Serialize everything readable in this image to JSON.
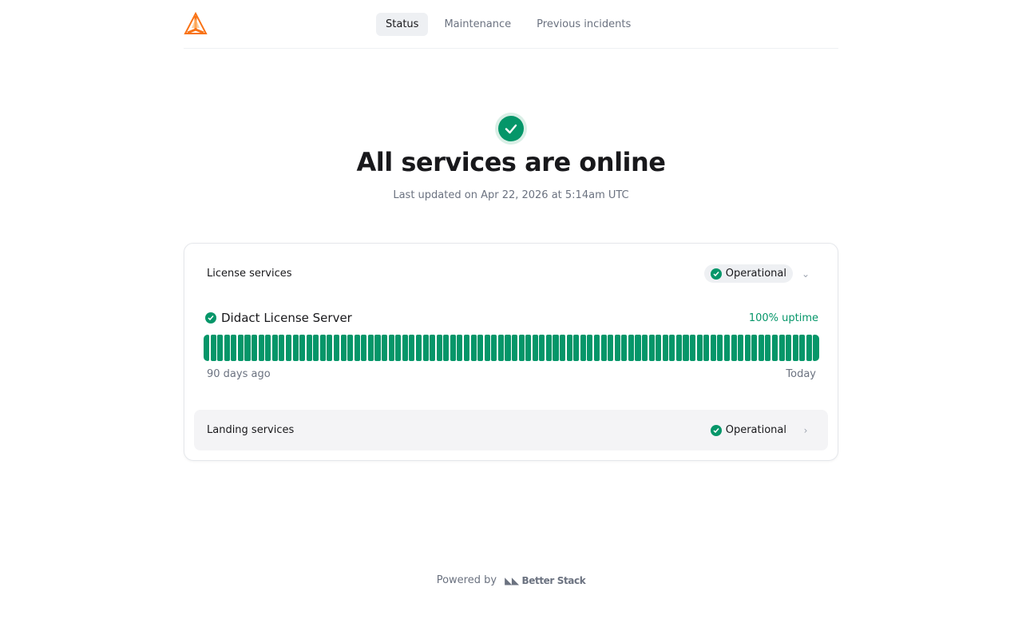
{
  "nav": {
    "items": [
      {
        "label": "Status",
        "active": true
      },
      {
        "label": "Maintenance"
      },
      {
        "label": "Previous incidents"
      }
    ]
  },
  "hero": {
    "icon": "check-circle-icon",
    "title": "All services are online",
    "updated": "Last updated on Apr 22, 2026 at 5:14am UTC"
  },
  "groups": [
    {
      "name": "License services",
      "status": "Operational",
      "expanded": true,
      "services": [
        {
          "name": "Didact License Server",
          "uptime": "100% uptime",
          "days": 90,
          "range_start": "90 days ago",
          "range_end": "Today"
        }
      ]
    },
    {
      "name": "Landing services",
      "status": "Operational",
      "expanded": false
    }
  ],
  "colors": {
    "operational": "#059669",
    "logo": "#f97316"
  },
  "footer": {
    "powered_by": "Powered by",
    "brand": "Better Stack"
  }
}
